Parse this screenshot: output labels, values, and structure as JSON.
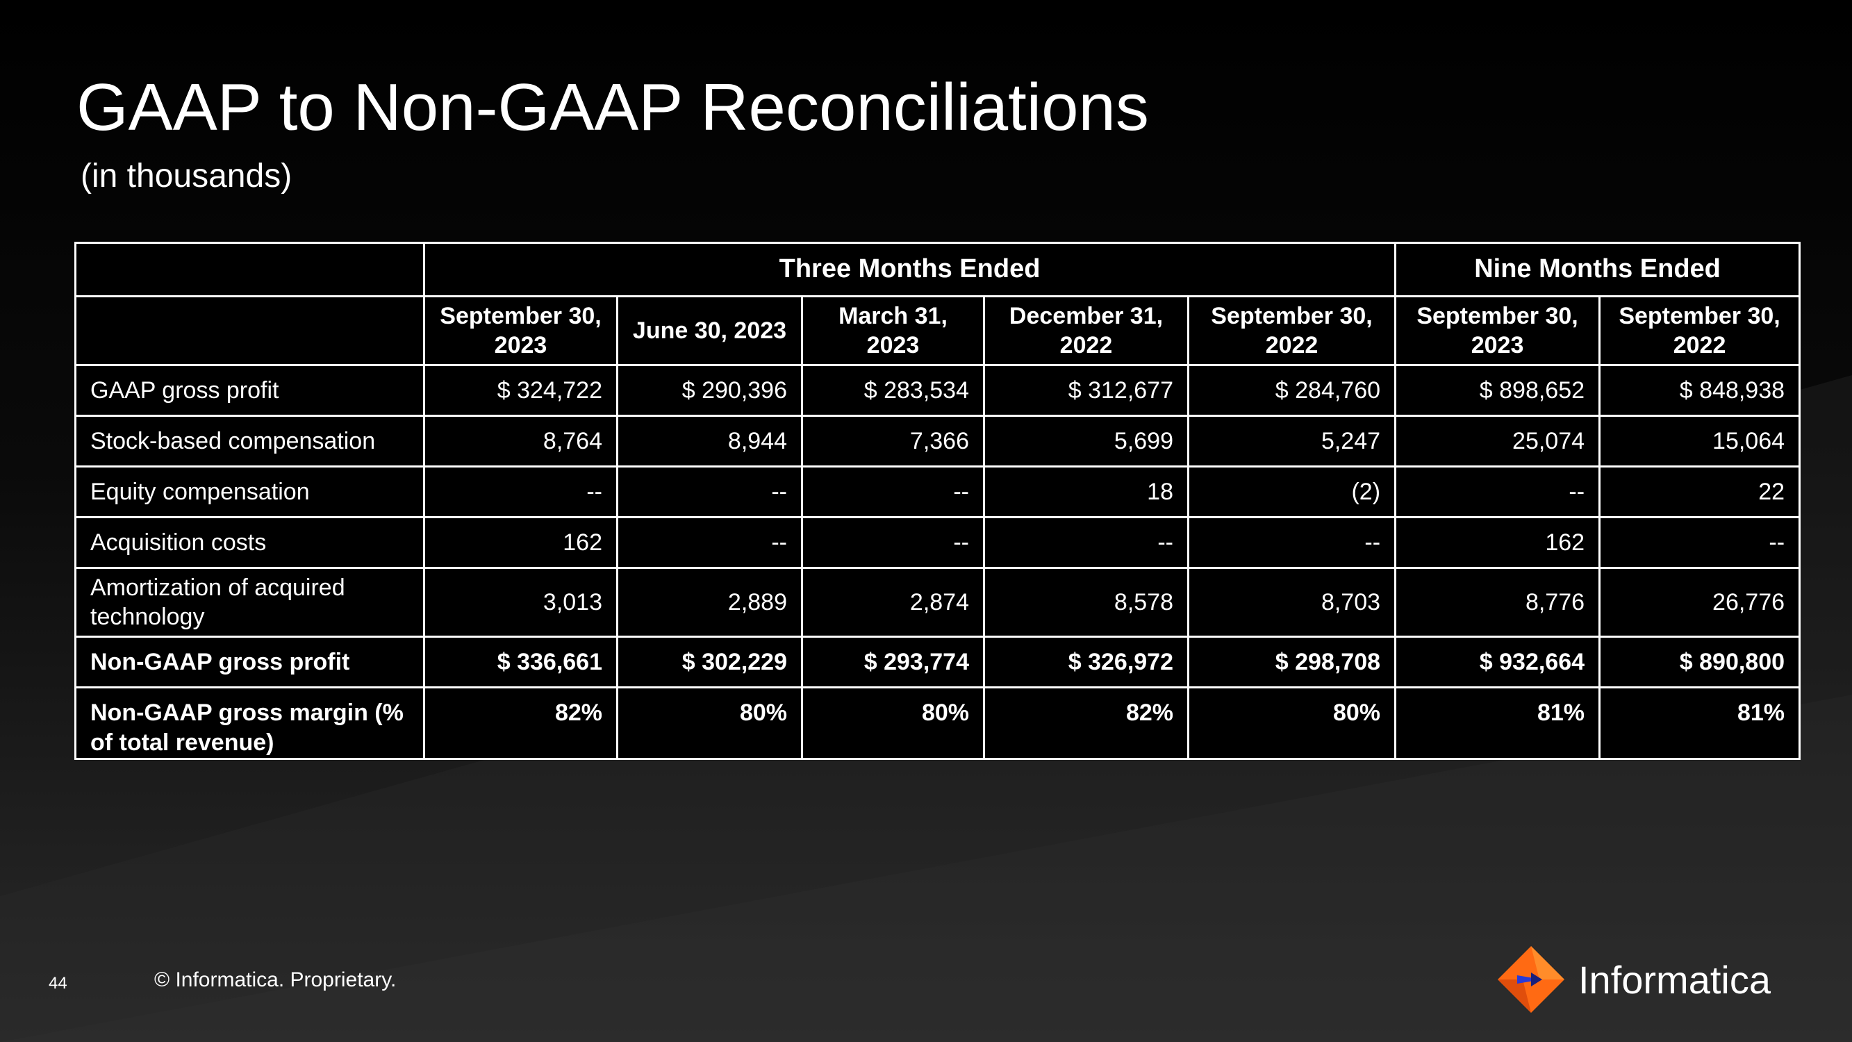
{
  "slide": {
    "title": "GAAP to Non-GAAP Reconciliations",
    "subtitle": "(in thousands)",
    "page_number": "44",
    "copyright": "© Informatica. Proprietary.",
    "logo_text": "Informatica"
  },
  "table": {
    "group_headers": [
      "Three Months Ended",
      "Nine Months Ended"
    ],
    "date_headers": [
      "September 30, 2023",
      "June 30, 2023",
      "March 31, 2023",
      "December 31, 2022",
      "September 30, 2022",
      "September 30, 2023",
      "September 30, 2022"
    ],
    "rows": [
      {
        "label": "GAAP gross profit",
        "values": [
          "$ 324,722",
          "$ 290,396",
          "$ 283,534",
          "$ 312,677",
          "$ 284,760",
          "$ 898,652",
          "$ 848,938"
        ]
      },
      {
        "label": "Stock-based compensation",
        "values": [
          "8,764",
          "8,944",
          "7,366",
          "5,699",
          "5,247",
          "25,074",
          "15,064"
        ]
      },
      {
        "label": "Equity compensation",
        "values": [
          "--",
          "--",
          "--",
          "18",
          "(2)",
          "--",
          "22"
        ]
      },
      {
        "label": "Acquisition costs",
        "values": [
          "162",
          "--",
          "--",
          "--",
          "--",
          "162",
          "--"
        ]
      },
      {
        "label": "Amortization of acquired technology",
        "values": [
          "3,013",
          "2,889",
          "2,874",
          "8,578",
          "8,703",
          "8,776",
          "26,776"
        ]
      },
      {
        "label": "Non-GAAP gross profit",
        "values": [
          "$ 336,661",
          "$ 302,229",
          "$ 293,774",
          "$ 326,972",
          "$ 298,708",
          "$ 932,664",
          "$ 890,800"
        ]
      },
      {
        "label": "Non-GAAP gross margin (% of total revenue)",
        "values": [
          "82%",
          "80%",
          "80%",
          "82%",
          "80%",
          "81%",
          "81%"
        ]
      }
    ]
  },
  "colors": {
    "background": "#000000",
    "text": "#ffffff",
    "logo_orange": "#ff6a13",
    "logo_blue": "#2a3bd8"
  }
}
